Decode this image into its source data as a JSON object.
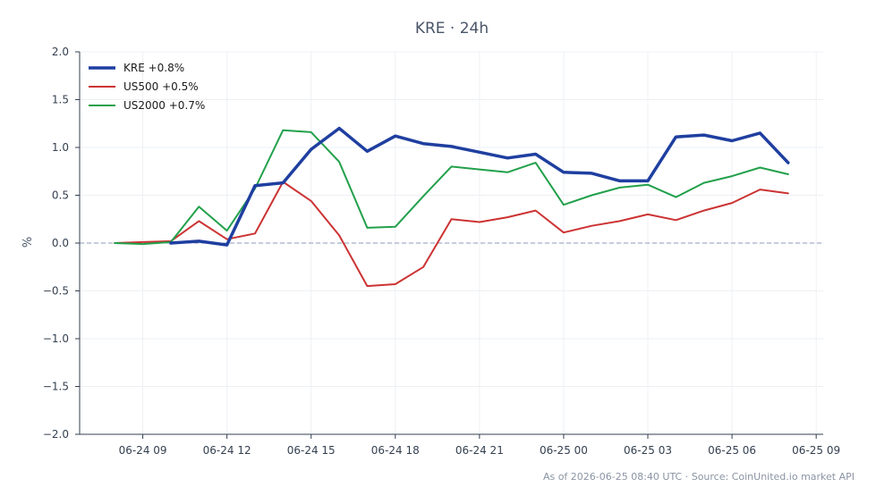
{
  "chart_data": {
    "type": "line",
    "title": "KRE · 24h",
    "xlabel": "",
    "ylabel": "%",
    "ylim": [
      -2.0,
      2.0
    ],
    "yticks": [
      2.0,
      1.5,
      1.0,
      0.5,
      0.0,
      -0.5,
      -1.0,
      -1.5,
      -2.0
    ],
    "ytick_labels": [
      "2.0",
      "1.5",
      "1.0",
      "0.5",
      "0.0",
      "−0.5",
      "−1.0",
      "−1.5",
      "−2.0"
    ],
    "xlim": [
      "2026-06-24 06:45",
      "2026-06-25 09:15"
    ],
    "xticks": [
      "2026-06-24 09:00",
      "2026-06-24 12:00",
      "2026-06-24 15:00",
      "2026-06-24 18:00",
      "2026-06-24 21:00",
      "2026-06-25 00:00",
      "2026-06-25 03:00",
      "2026-06-25 06:00",
      "2026-06-25 09:00"
    ],
    "xtick_labels": [
      "06-24 09",
      "06-24 12",
      "06-24 15",
      "06-24 18",
      "06-24 21",
      "06-25 00",
      "06-25 03",
      "06-25 06",
      "06-25 09"
    ],
    "grid": true,
    "reference_line": {
      "y": 0.0,
      "style": "dashed",
      "color": "#8c9bb5"
    },
    "legend_position": "top-left",
    "series": [
      {
        "name": "KRE +0.8%",
        "color": "#1f3fa0",
        "width": 3.5,
        "points": [
          [
            "2026-06-24 10:00",
            0.0
          ],
          [
            "2026-06-24 11:00",
            0.02
          ],
          [
            "2026-06-24 12:00",
            -0.02
          ],
          [
            "2026-06-24 13:00",
            0.6
          ],
          [
            "2026-06-24 14:00",
            0.63
          ],
          [
            "2026-06-24 15:00",
            0.98
          ],
          [
            "2026-06-24 16:00",
            1.2
          ],
          [
            "2026-06-24 17:00",
            0.96
          ],
          [
            "2026-06-24 18:00",
            1.12
          ],
          [
            "2026-06-24 19:00",
            1.04
          ],
          [
            "2026-06-24 20:00",
            1.01
          ],
          [
            "2026-06-24 21:00",
            0.95
          ],
          [
            "2026-06-24 22:00",
            0.89
          ],
          [
            "2026-06-24 23:00",
            0.93
          ],
          [
            "2026-06-25 00:00",
            0.74
          ],
          [
            "2026-06-25 01:00",
            0.73
          ],
          [
            "2026-06-25 02:00",
            0.65
          ],
          [
            "2026-06-25 03:00",
            0.65
          ],
          [
            "2026-06-25 04:00",
            1.11
          ],
          [
            "2026-06-25 05:00",
            1.13
          ],
          [
            "2026-06-25 06:00",
            1.07
          ],
          [
            "2026-06-25 07:00",
            1.15
          ],
          [
            "2026-06-25 08:00",
            0.84
          ]
        ]
      },
      {
        "name": "US500 +0.5%",
        "color": "#cc3333",
        "width": 2,
        "points": [
          [
            "2026-06-24 08:00",
            0.0
          ],
          [
            "2026-06-24 09:00",
            0.01
          ],
          [
            "2026-06-24 10:00",
            0.02
          ],
          [
            "2026-06-24 11:00",
            0.23
          ],
          [
            "2026-06-24 12:00",
            0.04
          ],
          [
            "2026-06-24 13:00",
            0.1
          ],
          [
            "2026-06-24 14:00",
            0.64
          ],
          [
            "2026-06-24 15:00",
            0.44
          ],
          [
            "2026-06-24 16:00",
            0.08
          ],
          [
            "2026-06-24 17:00",
            -0.45
          ],
          [
            "2026-06-24 18:00",
            -0.43
          ],
          [
            "2026-06-24 19:00",
            -0.25
          ],
          [
            "2026-06-24 20:00",
            0.25
          ],
          [
            "2026-06-24 21:00",
            0.22
          ],
          [
            "2026-06-24 22:00",
            0.27
          ],
          [
            "2026-06-24 23:00",
            0.34
          ],
          [
            "2026-06-25 00:00",
            0.11
          ],
          [
            "2026-06-25 01:00",
            0.18
          ],
          [
            "2026-06-25 02:00",
            0.23
          ],
          [
            "2026-06-25 03:00",
            0.3
          ],
          [
            "2026-06-25 04:00",
            0.24
          ],
          [
            "2026-06-25 05:00",
            0.34
          ],
          [
            "2026-06-25 06:00",
            0.42
          ],
          [
            "2026-06-25 07:00",
            0.56
          ],
          [
            "2026-06-25 08:00",
            0.52
          ]
        ]
      },
      {
        "name": "US2000 +0.7%",
        "color": "#22a04b",
        "width": 2,
        "points": [
          [
            "2026-06-24 08:00",
            0.0
          ],
          [
            "2026-06-24 09:00",
            -0.01
          ],
          [
            "2026-06-24 10:00",
            0.01
          ],
          [
            "2026-06-24 11:00",
            0.38
          ],
          [
            "2026-06-24 12:00",
            0.13
          ],
          [
            "2026-06-24 13:00",
            0.57
          ],
          [
            "2026-06-24 14:00",
            1.18
          ],
          [
            "2026-06-24 15:00",
            1.16
          ],
          [
            "2026-06-24 16:00",
            0.85
          ],
          [
            "2026-06-24 17:00",
            0.16
          ],
          [
            "2026-06-24 18:00",
            0.17
          ],
          [
            "2026-06-24 19:00",
            0.49
          ],
          [
            "2026-06-24 20:00",
            0.8
          ],
          [
            "2026-06-24 21:00",
            0.77
          ],
          [
            "2026-06-24 22:00",
            0.74
          ],
          [
            "2026-06-24 23:00",
            0.84
          ],
          [
            "2026-06-25 00:00",
            0.4
          ],
          [
            "2026-06-25 01:00",
            0.5
          ],
          [
            "2026-06-25 02:00",
            0.58
          ],
          [
            "2026-06-25 03:00",
            0.61
          ],
          [
            "2026-06-25 04:00",
            0.48
          ],
          [
            "2026-06-25 05:00",
            0.63
          ],
          [
            "2026-06-25 06:00",
            0.7
          ],
          [
            "2026-06-25 07:00",
            0.79
          ],
          [
            "2026-06-25 08:00",
            0.72
          ]
        ]
      }
    ]
  },
  "footer": "As of 2026-06-25 08:40 UTC · Source: CoinUnited.io market API"
}
